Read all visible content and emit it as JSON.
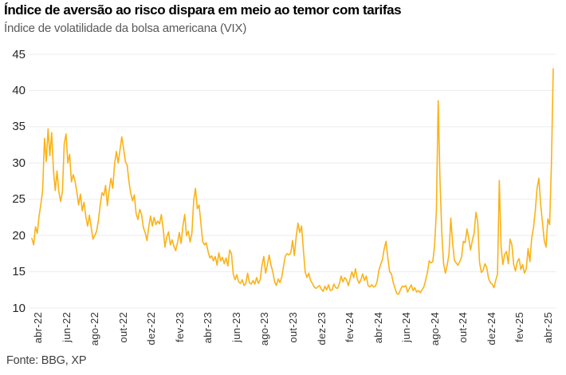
{
  "header": {
    "title": "Índice de aversão ao risco dispara em meio ao temor com tarifas",
    "subtitle": "Índice de volatilidade da bolsa americana (VIX)"
  },
  "footer": {
    "source": "Fonte: BBG, XP"
  },
  "chart_data": {
    "type": "line",
    "title": "Índice de aversão ao risco dispara em meio ao temor com tarifas",
    "subtitle": "Índice de volatilidade da bolsa americana (VIX)",
    "series_name": "VIX",
    "line_color": "#FBB216",
    "grid_color": "#ECECEC",
    "grid": "horizontal-only",
    "ylim": [
      10,
      45
    ],
    "y_ticks": [
      45,
      40,
      35,
      30,
      25,
      20,
      15,
      10
    ],
    "x_ticks": [
      "abr-22",
      "jun-22",
      "ago-22",
      "out-22",
      "dez-22",
      "fev-23",
      "abr-23",
      "jun-23",
      "ago-23",
      "out-23",
      "dez-23",
      "fev-24",
      "abr-24",
      "jun-24",
      "ago-24",
      "out-24",
      "dez-24",
      "fev-25",
      "abr-25"
    ],
    "x_range_note": "valores diários de abr-22 a abr-25",
    "values": [
      19.6,
      18.7,
      21.2,
      20.3,
      22.7,
      24.3,
      26.3,
      33.4,
      30.2,
      34.7,
      31.0,
      34.2,
      29.0,
      26.2,
      28.9,
      26.0,
      24.7,
      26.1,
      32.7,
      34.0,
      30.0,
      31.2,
      27.4,
      28.4,
      27.5,
      26.0,
      24.2,
      25.7,
      23.4,
      24.6,
      22.6,
      21.3,
      22.8,
      21.1,
      19.5,
      20.0,
      20.6,
      22.1,
      24.2,
      25.9,
      25.5,
      26.9,
      24.1,
      26.3,
      27.9,
      26.5,
      29.9,
      31.6,
      30.0,
      31.8,
      33.6,
      32.0,
      30.2,
      29.7,
      27.4,
      25.8,
      24.8,
      25.6,
      23.0,
      22.2,
      23.6,
      22.9,
      21.1,
      20.4,
      19.3,
      21.2,
      22.7,
      21.3,
      22.5,
      21.5,
      22.0,
      21.6,
      22.9,
      21.0,
      18.4,
      19.8,
      20.5,
      18.7,
      19.4,
      18.5,
      17.9,
      19.0,
      20.4,
      18.9,
      21.3,
      22.9,
      20.0,
      20.6,
      19.1,
      20.3,
      24.8,
      26.5,
      23.7,
      24.2,
      21.7,
      19.2,
      18.7,
      19.0,
      17.8,
      16.9,
      17.2,
      16.5,
      17.1,
      15.9,
      17.6,
      16.5,
      17.0,
      16.1,
      16.9,
      15.8,
      18.0,
      17.5,
      14.7,
      13.9,
      14.6,
      13.6,
      13.4,
      13.9,
      13.1,
      13.4,
      14.8,
      13.5,
      13.3,
      13.8,
      13.3,
      14.2,
      13.4,
      13.9,
      15.9,
      17.1,
      14.8,
      16.0,
      17.3,
      15.9,
      15.0,
      13.6,
      13.1,
      14.0,
      13.5,
      14.3,
      15.8,
      17.2,
      17.5,
      17.3,
      17.6,
      19.3,
      17.2,
      19.8,
      21.7,
      20.4,
      21.3,
      18.1,
      15.0,
      14.2,
      14.8,
      13.8,
      13.4,
      12.9,
      12.7,
      12.9,
      13.1,
      12.6,
      12.3,
      13.0,
      12.5,
      13.2,
      12.4,
      12.5,
      13.3,
      12.8,
      12.7,
      13.3,
      14.4,
      13.6,
      14.2,
      13.9,
      13.1,
      14.0,
      15.0,
      14.2,
      15.4,
      14.0,
      13.4,
      13.9,
      14.7,
      13.8,
      14.4,
      13.1,
      12.9,
      13.2,
      12.9,
      13.0,
      13.6,
      15.2,
      16.0,
      16.7,
      18.2,
      19.2,
      16.9,
      15.0,
      14.7,
      13.5,
      12.7,
      12.0,
      11.9,
      12.5,
      13.0,
      12.9,
      13.1,
      12.2,
      12.7,
      13.2,
      12.4,
      12.8,
      12.2,
      12.4,
      12.1,
      12.5,
      12.9,
      13.8,
      14.9,
      16.5,
      16.2,
      16.4,
      18.6,
      23.4,
      38.6,
      27.7,
      20.4,
      16.1,
      14.8,
      15.9,
      17.4,
      22.4,
      19.1,
      16.6,
      16.2,
      15.9,
      16.4,
      17.0,
      19.2,
      19.0,
      20.9,
      19.6,
      18.0,
      19.3,
      20.3,
      23.2,
      21.9,
      16.3,
      14.9,
      15.2,
      16.1,
      15.6,
      14.1,
      13.5,
      13.3,
      12.8,
      13.8,
      14.7,
      27.6,
      18.4,
      16.0,
      17.4,
      17.8,
      16.1,
      19.5,
      18.7,
      16.0,
      15.1,
      16.4,
      16.8,
      15.3,
      16.0,
      14.8,
      15.4,
      18.2,
      16.4,
      19.6,
      21.1,
      23.4,
      26.5,
      27.9,
      24.3,
      21.8,
      19.3,
      18.4,
      22.3,
      21.5,
      30.0,
      43.0
    ]
  }
}
